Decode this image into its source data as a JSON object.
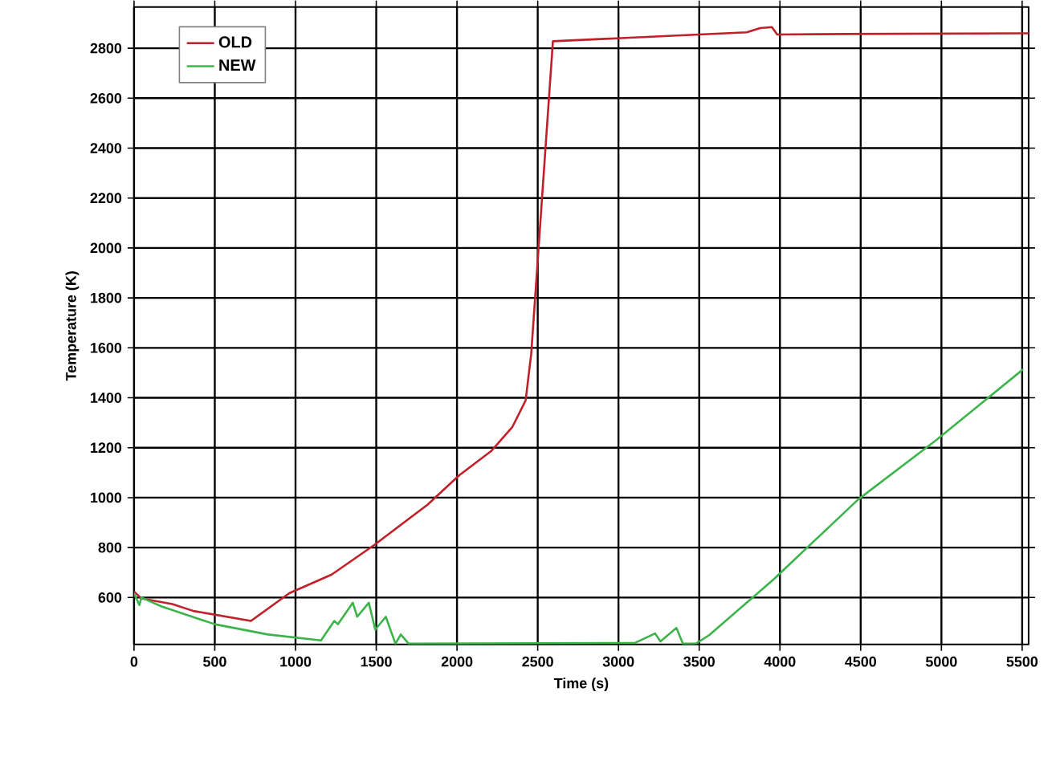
{
  "chart_data": {
    "type": "line",
    "xlabel": "Time (s)",
    "ylabel": "Temperature  (K)",
    "xlim": [
      0,
      5540
    ],
    "ylim": [
      412,
      2965
    ],
    "xticks": [
      0,
      500,
      1000,
      1500,
      2000,
      2500,
      3000,
      3500,
      4000,
      4500,
      5000,
      5500
    ],
    "yticks": [
      600,
      800,
      1000,
      1200,
      1400,
      1600,
      1800,
      2000,
      2200,
      2400,
      2600,
      2800
    ],
    "grid": true,
    "legend": "top left",
    "marker": "none",
    "line_style": "solid",
    "series": [
      {
        "name": "OLD",
        "color": "#c0202a",
        "x": [
          0,
          46,
          237,
          368,
          724,
          961,
          1224,
          1487,
          1816,
          2013,
          2211,
          2342,
          2425,
          2441,
          2460,
          2594,
          3795,
          3877,
          3950,
          3983,
          4405,
          5540
        ],
        "values": [
          624,
          596,
          574,
          546,
          506,
          617,
          692,
          810,
          971,
          1089,
          1186,
          1282,
          1389,
          1475,
          1578,
          2828,
          2864,
          2881,
          2885,
          2855,
          2857,
          2860
        ]
      },
      {
        "name": "NEW",
        "color": "#3cb44b",
        "x": [
          0,
          33,
          46,
          171,
          500,
          829,
          1158,
          1240,
          1263,
          1355,
          1382,
          1454,
          1494,
          1559,
          1619,
          1652,
          1701,
          3102,
          3227,
          3260,
          3359,
          3399,
          3481,
          3563,
          3958,
          4485,
          4963,
          5506
        ],
        "values": [
          617,
          570,
          600,
          564,
          493,
          452,
          428,
          506,
          493,
          579,
          523,
          579,
          471,
          523,
          415,
          452,
          415,
          418,
          456,
          424,
          478,
          415,
          416,
          450,
          671,
          993,
          1228,
          1514
        ]
      }
    ]
  }
}
